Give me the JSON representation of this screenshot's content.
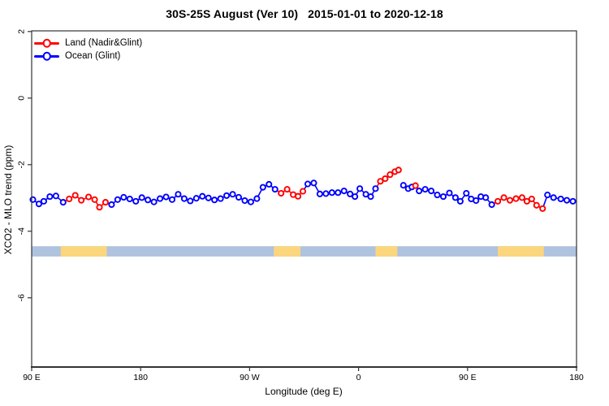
{
  "chart_data": {
    "type": "line",
    "title": "30S-25S August (Ver 10)   2015-01-01 to 2020-12-18",
    "xlabel": "Longitude (deg E)",
    "ylabel": "XCO2 - MLO trend (ppm)",
    "xlim": [
      90,
      540
    ],
    "ylim": [
      -8.08,
      2.02
    ],
    "grid": false,
    "x_ticks": [
      {
        "v": 90,
        "label": "90 E"
      },
      {
        "v": 180,
        "label": "180"
      },
      {
        "v": 270,
        "label": "90 W"
      },
      {
        "v": 360,
        "label": "0"
      },
      {
        "v": 450,
        "label": "90 E"
      },
      {
        "v": 540,
        "label": "180"
      }
    ],
    "y_ticks": [
      {
        "v": 2,
        "label": "2"
      },
      {
        "v": 0,
        "label": "0"
      },
      {
        "v": -2,
        "label": "-2"
      },
      {
        "v": -4,
        "label": "-4"
      },
      {
        "v": -6,
        "label": "-6"
      }
    ],
    "legend": {
      "position": "top-left",
      "items": [
        {
          "label": "Land (Nadir&Glint)",
          "color": "#ff0000",
          "marker": "open-circle-line"
        },
        {
          "label": "Ocean (Glint)",
          "color": "#0000ff",
          "marker": "open-circle-line"
        }
      ]
    },
    "series_colors": {
      "L": "#ff0000",
      "O": "#0000ff"
    },
    "surface_band": {
      "y_top": -4.45,
      "y_bottom": -4.76,
      "ocean_color": "#afc3df",
      "land_color": "#fcd67c",
      "land_segments_lon": [
        [
          114,
          152
        ],
        [
          290,
          312
        ],
        [
          374,
          392
        ],
        [
          475,
          513
        ]
      ]
    },
    "points_format": [
      "longitude_deg_e_axis",
      "xco2_minus_mlo_trend_ppm",
      "surface L=land O=ocean",
      "gap_before_flag"
    ],
    "points": [
      [
        91,
        -3.05,
        "O"
      ],
      [
        96,
        -3.18,
        "O"
      ],
      [
        100,
        -3.1,
        "O"
      ],
      [
        105,
        -2.96,
        "O"
      ],
      [
        110,
        -2.94,
        "O"
      ],
      [
        116,
        -3.13,
        "O"
      ],
      [
        121,
        -3.03,
        "L"
      ],
      [
        126,
        -2.92,
        "L"
      ],
      [
        131,
        -3.07,
        "L"
      ],
      [
        137,
        -2.97,
        "L"
      ],
      [
        142,
        -3.05,
        "L"
      ],
      [
        146,
        -3.28,
        "L"
      ],
      [
        151,
        -3.13,
        "L"
      ],
      [
        156,
        -3.2,
        "O"
      ],
      [
        161,
        -3.05,
        "O"
      ],
      [
        166,
        -2.98,
        "O"
      ],
      [
        171,
        -3.03,
        "O"
      ],
      [
        176,
        -3.1,
        "O"
      ],
      [
        181,
        -2.99,
        "O"
      ],
      [
        186,
        -3.06,
        "O"
      ],
      [
        191,
        -3.12,
        "O"
      ],
      [
        196,
        -3.02,
        "O"
      ],
      [
        201,
        -2.97,
        "O"
      ],
      [
        206,
        -3.05,
        "O"
      ],
      [
        211,
        -2.89,
        "O"
      ],
      [
        216,
        -3.02,
        "O"
      ],
      [
        221,
        -3.09,
        "O"
      ],
      [
        226,
        -3.01,
        "O"
      ],
      [
        231,
        -2.95,
        "O"
      ],
      [
        236,
        -3.0,
        "O"
      ],
      [
        241,
        -3.06,
        "O"
      ],
      [
        246,
        -3.02,
        "O"
      ],
      [
        251,
        -2.93,
        "O"
      ],
      [
        256,
        -2.89,
        "O"
      ],
      [
        261,
        -2.98,
        "O"
      ],
      [
        266,
        -3.08,
        "O"
      ],
      [
        271,
        -3.12,
        "O"
      ],
      [
        276,
        -3.02,
        "O"
      ],
      [
        281,
        -2.68,
        "O"
      ],
      [
        286,
        -2.59,
        "O"
      ],
      [
        291,
        -2.74,
        "O"
      ],
      [
        296,
        -2.86,
        "L"
      ],
      [
        301,
        -2.74,
        "L"
      ],
      [
        306,
        -2.9,
        "L"
      ],
      [
        310,
        -2.95,
        "L"
      ],
      [
        314,
        -2.8,
        "L"
      ],
      [
        318,
        -2.58,
        "O"
      ],
      [
        323,
        -2.55,
        "O"
      ],
      [
        328,
        -2.88,
        "O"
      ],
      [
        333,
        -2.87,
        "O"
      ],
      [
        338,
        -2.84,
        "O"
      ],
      [
        343,
        -2.84,
        "O"
      ],
      [
        348,
        -2.79,
        "O"
      ],
      [
        353,
        -2.88,
        "O"
      ],
      [
        357,
        -2.96,
        "O"
      ],
      [
        361,
        -2.72,
        "O"
      ],
      [
        366,
        -2.89,
        "O"
      ],
      [
        370,
        -2.96,
        "O"
      ],
      [
        374,
        -2.72,
        "O"
      ],
      [
        378,
        -2.5,
        "L"
      ],
      [
        382,
        -2.42,
        "L"
      ],
      [
        386,
        -2.3,
        "L"
      ],
      [
        390,
        -2.21,
        "L"
      ],
      [
        393,
        -2.16,
        "L"
      ],
      [
        397,
        -2.62,
        "O",
        1
      ],
      [
        401,
        -2.72,
        "O"
      ],
      [
        404,
        -2.67,
        "O"
      ],
      [
        407,
        -2.63,
        "L"
      ],
      [
        410,
        -2.79,
        "O"
      ],
      [
        415,
        -2.74,
        "O"
      ],
      [
        420,
        -2.79,
        "O"
      ],
      [
        425,
        -2.91,
        "O"
      ],
      [
        430,
        -2.96,
        "O"
      ],
      [
        435,
        -2.85,
        "O"
      ],
      [
        440,
        -2.99,
        "O"
      ],
      [
        444,
        -3.1,
        "O"
      ],
      [
        449,
        -2.86,
        "O"
      ],
      [
        453,
        -3.03,
        "O"
      ],
      [
        457,
        -3.08,
        "O"
      ],
      [
        461,
        -2.96,
        "O"
      ],
      [
        465,
        -2.99,
        "O"
      ],
      [
        470,
        -3.2,
        "O"
      ],
      [
        475,
        -3.1,
        "L"
      ],
      [
        480,
        -2.99,
        "L"
      ],
      [
        485,
        -3.07,
        "L"
      ],
      [
        490,
        -3.02,
        "L"
      ],
      [
        495,
        -2.99,
        "L"
      ],
      [
        499,
        -3.1,
        "L"
      ],
      [
        503,
        -3.03,
        "L"
      ],
      [
        507,
        -3.22,
        "L"
      ],
      [
        512,
        -3.32,
        "L"
      ],
      [
        516,
        -2.91,
        "O"
      ],
      [
        521,
        -2.99,
        "O"
      ],
      [
        527,
        -3.03,
        "O"
      ],
      [
        532,
        -3.07,
        "O"
      ],
      [
        537,
        -3.1,
        "O"
      ]
    ]
  }
}
